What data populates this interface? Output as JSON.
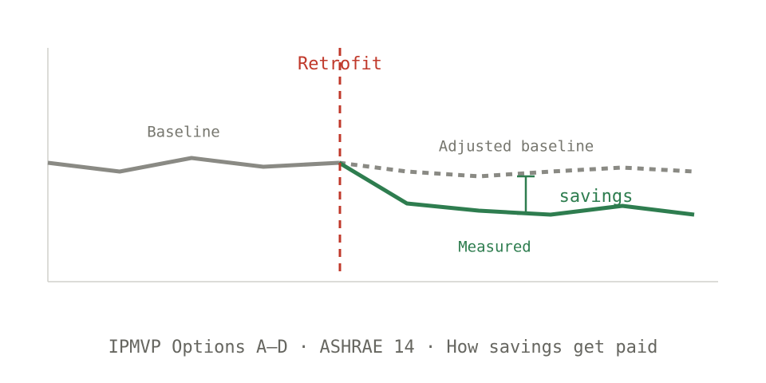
{
  "diagram": {
    "retrofit_label": "Retrofit",
    "baseline_label": "Baseline",
    "adjusted_label": "Adjusted baseline",
    "savings_label": "savings",
    "measured_label": "Measured"
  },
  "caption": "IPMVP Options A–D · ASHRAE 14 · How savings get paid"
}
